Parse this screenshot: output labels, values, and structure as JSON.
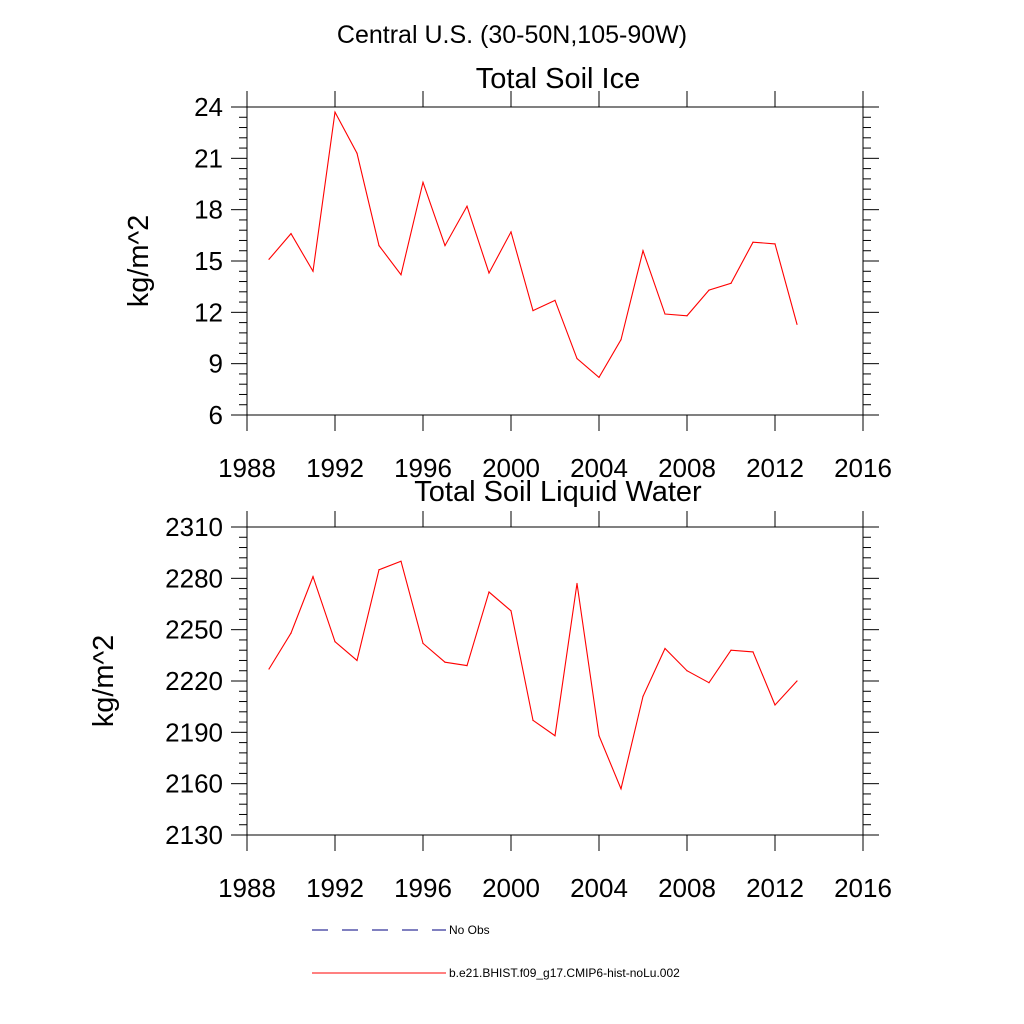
{
  "figure_title": "Central U.S. (30-50N,105-90W)",
  "colors": {
    "model_line": "#ff0000",
    "obs_line": "#000080",
    "axes": "#000000"
  },
  "legend": {
    "obs_label": "No Obs",
    "model_label": "b.e21.BHIST.f09_g17.CMIP6-hist-noLu.002"
  },
  "chart_data": [
    {
      "type": "line",
      "title": "Total Soil Ice",
      "xlabel": "",
      "ylabel": "kg/m^2",
      "xlim": [
        1988,
        2016
      ],
      "ylim": [
        6,
        24
      ],
      "xticks": [
        1988,
        1992,
        1996,
        2000,
        2004,
        2008,
        2012,
        2016
      ],
      "yticks": [
        6,
        9,
        12,
        15,
        18,
        21,
        24
      ],
      "grid": false,
      "series": [
        {
          "name": "b.e21.BHIST.f09_g17.CMIP6-hist-noLu.002",
          "x": [
            1989,
            1990,
            1991,
            1992,
            1993,
            1994,
            1995,
            1996,
            1997,
            1998,
            1999,
            2000,
            2001,
            2002,
            2003,
            2004,
            2005,
            2006,
            2007,
            2008,
            2009,
            2010,
            2011,
            2012,
            2013
          ],
          "values": [
            15.1,
            16.6,
            14.4,
            23.7,
            21.3,
            15.9,
            14.2,
            19.6,
            15.9,
            18.2,
            14.3,
            16.7,
            12.1,
            12.7,
            9.3,
            8.2,
            10.4,
            15.6,
            11.9,
            11.8,
            13.3,
            13.7,
            16.1,
            16.0,
            11.3
          ]
        }
      ]
    },
    {
      "type": "line",
      "title": "Total Soil Liquid Water",
      "xlabel": "",
      "ylabel": "kg/m^2",
      "xlim": [
        1988,
        2016
      ],
      "ylim": [
        2130,
        2310
      ],
      "xticks": [
        1988,
        1992,
        1996,
        2000,
        2004,
        2008,
        2012,
        2016
      ],
      "yticks": [
        2130,
        2160,
        2190,
        2220,
        2250,
        2280,
        2310
      ],
      "grid": false,
      "series": [
        {
          "name": "b.e21.BHIST.f09_g17.CMIP6-hist-noLu.002",
          "x": [
            1989,
            1990,
            1991,
            1992,
            1993,
            1994,
            1995,
            1996,
            1997,
            1998,
            1999,
            2000,
            2001,
            2002,
            2003,
            2004,
            2005,
            2006,
            2007,
            2008,
            2009,
            2010,
            2011,
            2012,
            2013
          ],
          "values": [
            2227,
            2248,
            2281,
            2243,
            2232,
            2285,
            2290,
            2242,
            2231,
            2229,
            2272,
            2261,
            2197,
            2188,
            2277,
            2188,
            2157,
            2211,
            2239,
            2226,
            2219,
            2238,
            2237,
            2206,
            2220
          ]
        }
      ]
    }
  ]
}
